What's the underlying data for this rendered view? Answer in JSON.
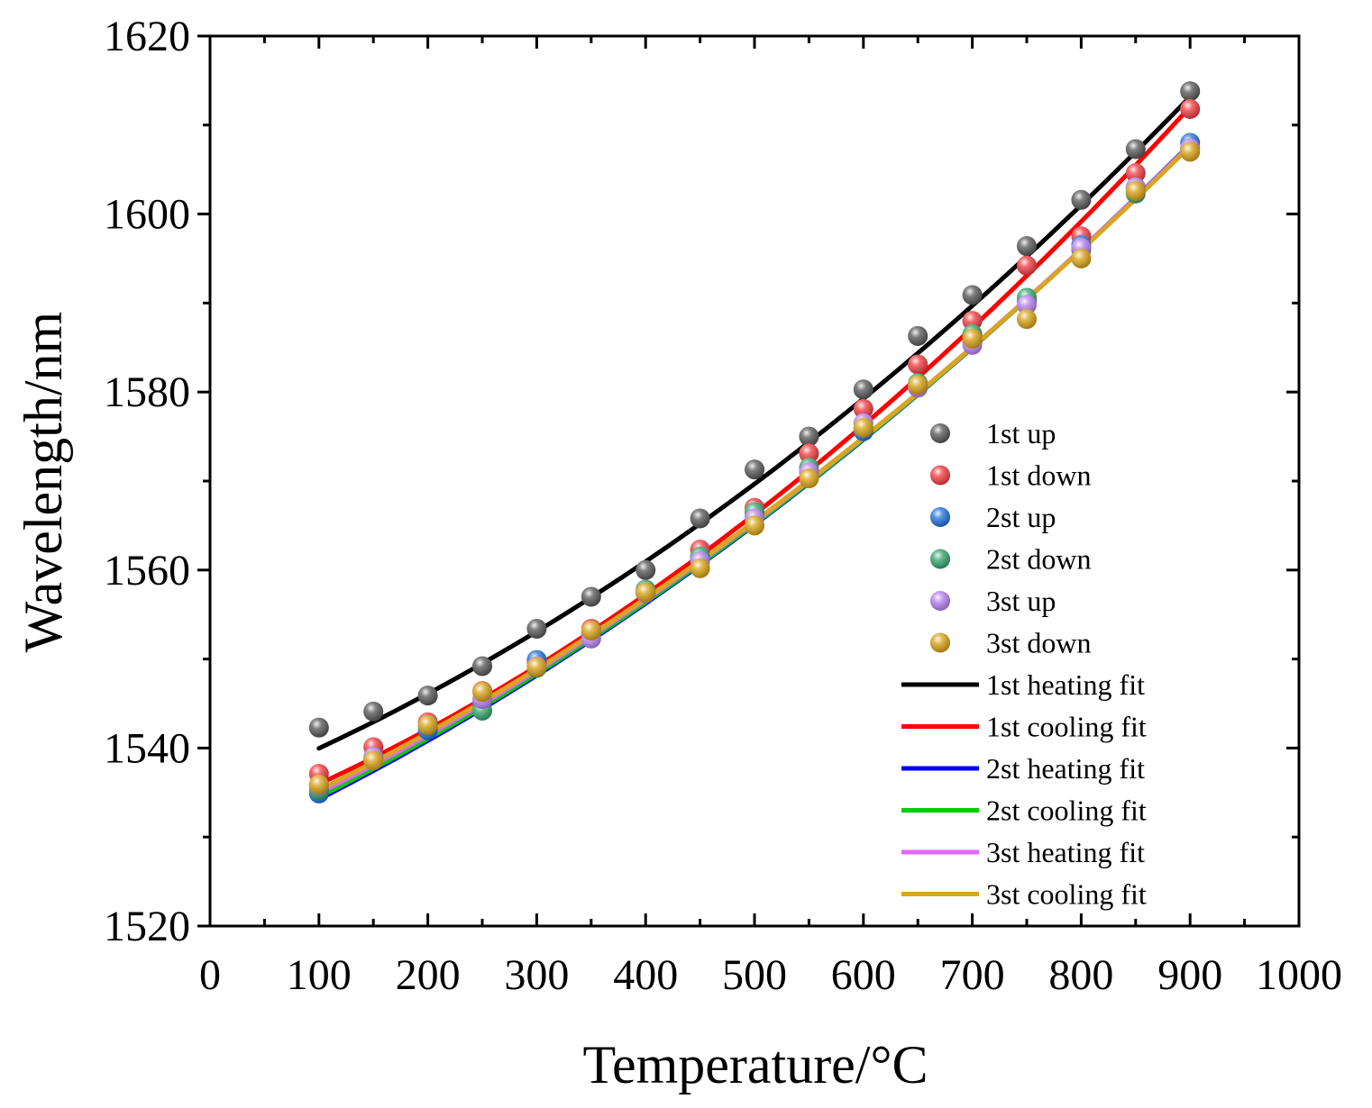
{
  "chart_data": {
    "type": "scatter",
    "xlabel": "Temperature/°C",
    "ylabel": "Wavelength/nm",
    "xlim": [
      0,
      1000
    ],
    "ylim": [
      1520,
      1620
    ],
    "xticks": [
      0,
      100,
      200,
      300,
      400,
      500,
      600,
      700,
      800,
      900,
      1000
    ],
    "yticks": [
      1520,
      1540,
      1560,
      1580,
      1600,
      1620
    ],
    "x": [
      100,
      150,
      200,
      250,
      300,
      350,
      400,
      450,
      500,
      550,
      600,
      650,
      700,
      750,
      800,
      850,
      900
    ],
    "series": [
      {
        "name": "1st up",
        "color": "#555555",
        "values": [
          1542.3,
          1544.1,
          1545.9,
          1549.2,
          1553.4,
          1557.0,
          1560.0,
          1565.8,
          1571.3,
          1575.0,
          1580.3,
          1586.3,
          1590.9,
          1596.4,
          1601.6,
          1607.3,
          1613.8
        ]
      },
      {
        "name": "1st down",
        "color": "#f0393e",
        "values": [
          1537.1,
          1540.1,
          1542.9,
          1546.4,
          1549.5,
          1553.4,
          1557.8,
          1562.3,
          1567.0,
          1573.1,
          1578.1,
          1583.1,
          1588.0,
          1594.2,
          1597.5,
          1604.6,
          1611.8
        ]
      },
      {
        "name": "2st up",
        "color": "#1f6fd9",
        "values": [
          1534.9,
          1538.8,
          1542.0,
          1545.0,
          1549.9,
          1552.8,
          1557.4,
          1561.4,
          1566.0,
          1571.0,
          1575.6,
          1580.5,
          1585.6,
          1590.2,
          1596.5,
          1603.0,
          1608.0
        ]
      },
      {
        "name": "2st down",
        "color": "#33a36a",
        "values": [
          1535.3,
          1539.0,
          1542.5,
          1544.2,
          1549.0,
          1553.0,
          1557.8,
          1561.5,
          1566.5,
          1571.5,
          1576.0,
          1581.0,
          1586.5,
          1590.6,
          1596.0,
          1602.3,
          1607.3
        ]
      },
      {
        "name": "3st up",
        "color": "#b57ef0",
        "values": [
          1535.8,
          1539.0,
          1542.6,
          1545.5,
          1549.2,
          1552.3,
          1557.4,
          1561.0,
          1565.8,
          1571.0,
          1576.5,
          1580.5,
          1585.3,
          1589.8,
          1596.2,
          1603.0,
          1607.4
        ]
      },
      {
        "name": "3st down",
        "color": "#d7a012",
        "values": [
          1535.9,
          1538.6,
          1542.6,
          1546.3,
          1549.1,
          1553.2,
          1557.5,
          1560.2,
          1565.0,
          1570.3,
          1576.0,
          1580.8,
          1586.0,
          1588.2,
          1595.0,
          1602.6,
          1607.0
        ]
      }
    ],
    "fits": [
      {
        "name": "1st heating  fit",
        "color": "#000000",
        "coef": [
          1534.7,
          0.0484,
          4.31e-05
        ]
      },
      {
        "name": "1st cooling  fit",
        "color": "#ff0000",
        "coef": [
          1530.8,
          0.0468,
          4.83e-05
        ]
      },
      {
        "name": "2st heating  fit",
        "color": "#0000ff",
        "coef": [
          1528.4,
          0.0547,
          3.73e-05
        ]
      },
      {
        "name": "2st cooling  fit",
        "color": "#00cc00",
        "coef": [
          1528.7,
          0.0543,
          3.73e-05
        ]
      },
      {
        "name": "3st heating  fit",
        "color": "#e066ff",
        "coef": [
          1529.2,
          0.0537,
          3.73e-05
        ]
      },
      {
        "name": "3st cooling  fit",
        "color": "#daa520",
        "coef": [
          1529.6,
          0.0531,
          3.73e-05
        ]
      }
    ],
    "fit_range": [
      100,
      900
    ],
    "legend": "right",
    "grid": false
  }
}
